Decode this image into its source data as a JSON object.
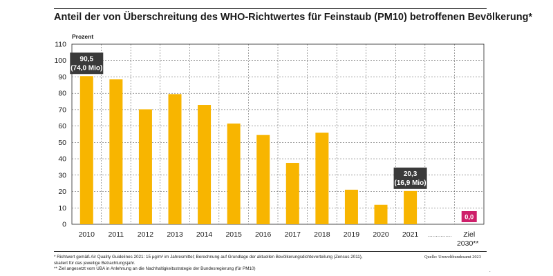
{
  "header": {
    "title": "Anteil der von Überschreitung des WHO-Richtwertes für Feinstaub (PM10) betroffenen Bevölkerung*"
  },
  "footer": {
    "note1": "* Richtwert gemäß Air Quality Guidelines 2021: 15 µg/m³ im Jahresmittel; Berechnung auf Grundlage der aktuellen Bevölkerungsdichteverteilung (Zensus 2011), skaliert für das jeweilige Betrachtungsjahr.",
    "note2": "** Ziel angesetzt vom UBA in Anlehnung an die Nachhaltigkeitsstrategie der Bundesregierung (für PM10)",
    "source": "Quelle: Umweltbundesamt 2023",
    "dot": "."
  },
  "chart_data": {
    "type": "bar",
    "title": "Anteil der von Überschreitung des WHO-Richtwertes für Feinstaub (PM10) betroffenen Bevölkerung*",
    "ylabel": "Prozent",
    "xlabel": "",
    "ylim": [
      0,
      110
    ],
    "yticks": [
      0,
      10,
      20,
      30,
      40,
      50,
      60,
      70,
      80,
      90,
      100,
      110
    ],
    "grid": true,
    "categories": [
      "2010",
      "2011",
      "2012",
      "2013",
      "2014",
      "2015",
      "2016",
      "2017",
      "2018",
      "2019",
      "2020",
      "2021",
      "",
      "Ziel 2030**"
    ],
    "values": [
      90.5,
      88.5,
      70.2,
      79.5,
      72.9,
      61.5,
      54.5,
      37.5,
      55.9,
      21.1,
      11.9,
      20.3,
      null,
      0.0
    ],
    "gap_label": "……………",
    "bar_color": "#f8b500",
    "target_color": "#ce1f6a",
    "annotations": [
      {
        "category": "2010",
        "lines": [
          "90,5",
          "(74,0 Mio)"
        ]
      },
      {
        "category": "2021",
        "lines": [
          "20,3",
          "(16,9 Mio)"
        ]
      },
      {
        "category": "Ziel 2030**",
        "lines": [
          "0,0"
        ]
      }
    ]
  }
}
